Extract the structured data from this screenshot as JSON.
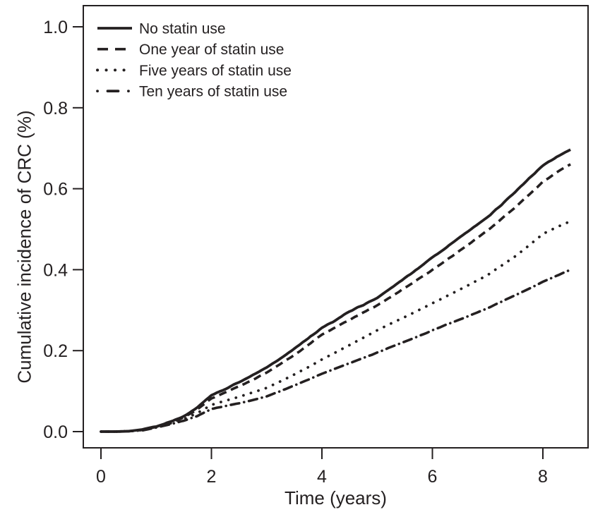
{
  "figure": {
    "background": "#ffffff",
    "ink_color": "#242021"
  },
  "chart_data": {
    "type": "line",
    "title": "",
    "xlabel": "Time (years)",
    "ylabel": "Cumulative incidence of CRC (%)",
    "xlim": [
      0,
      8.6
    ],
    "ylim": [
      0,
      1.04
    ],
    "grid": false,
    "legend_position": "top-left-inside",
    "x_ticks": [
      0,
      2,
      4,
      6,
      8
    ],
    "x_tick_labels": [
      "0",
      "2",
      "4",
      "6",
      "8"
    ],
    "y_ticks": [
      0,
      0.2,
      0.4,
      0.6,
      0.8,
      1.0
    ],
    "y_tick_labels": [
      "0.0",
      "0.2",
      "0.4",
      "0.6",
      "0.8",
      "1.0"
    ],
    "x": [
      0,
      0.25,
      0.5,
      0.75,
      1,
      1.25,
      1.5,
      1.75,
      2,
      2.25,
      2.5,
      2.75,
      3,
      3.25,
      3.5,
      3.75,
      4,
      4.25,
      4.5,
      4.75,
      5,
      5.25,
      5.5,
      5.75,
      6,
      6.25,
      6.5,
      6.75,
      7,
      7.25,
      7.5,
      7.75,
      8,
      8.25,
      8.5
    ],
    "series": [
      {
        "name": "No statin use",
        "style": "solid",
        "values": [
          0,
          0,
          0.001,
          0.005,
          0.013,
          0.024,
          0.038,
          0.06,
          0.09,
          0.105,
          0.122,
          0.14,
          0.158,
          0.18,
          0.205,
          0.23,
          0.256,
          0.275,
          0.297,
          0.313,
          0.33,
          0.354,
          0.379,
          0.404,
          0.43,
          0.455,
          0.48,
          0.505,
          0.53,
          0.56,
          0.592,
          0.625,
          0.658,
          0.678,
          0.697
        ]
      },
      {
        "name": "One year of statin use",
        "style": "dashed",
        "values": [
          0,
          0,
          0.001,
          0.004,
          0.012,
          0.022,
          0.035,
          0.055,
          0.082,
          0.097,
          0.112,
          0.128,
          0.146,
          0.167,
          0.189,
          0.214,
          0.24,
          0.258,
          0.276,
          0.294,
          0.312,
          0.333,
          0.355,
          0.377,
          0.4,
          0.423,
          0.447,
          0.472,
          0.497,
          0.525,
          0.554,
          0.585,
          0.617,
          0.64,
          0.661
        ]
      },
      {
        "name": "Five years of statin use",
        "style": "dotted",
        "values": [
          0,
          0,
          0.001,
          0.004,
          0.011,
          0.02,
          0.031,
          0.046,
          0.066,
          0.076,
          0.086,
          0.097,
          0.108,
          0.124,
          0.141,
          0.159,
          0.178,
          0.196,
          0.214,
          0.232,
          0.25,
          0.267,
          0.283,
          0.3,
          0.317,
          0.334,
          0.351,
          0.369,
          0.387,
          0.41,
          0.433,
          0.46,
          0.488,
          0.505,
          0.52
        ]
      },
      {
        "name": "Ten years of statin use",
        "style": "dashdot",
        "values": [
          0,
          0,
          0.001,
          0.003,
          0.01,
          0.018,
          0.027,
          0.039,
          0.056,
          0.063,
          0.07,
          0.078,
          0.087,
          0.1,
          0.114,
          0.128,
          0.143,
          0.156,
          0.169,
          0.182,
          0.195,
          0.209,
          0.222,
          0.236,
          0.25,
          0.264,
          0.277,
          0.291,
          0.305,
          0.321,
          0.337,
          0.353,
          0.37,
          0.385,
          0.4
        ]
      }
    ]
  }
}
